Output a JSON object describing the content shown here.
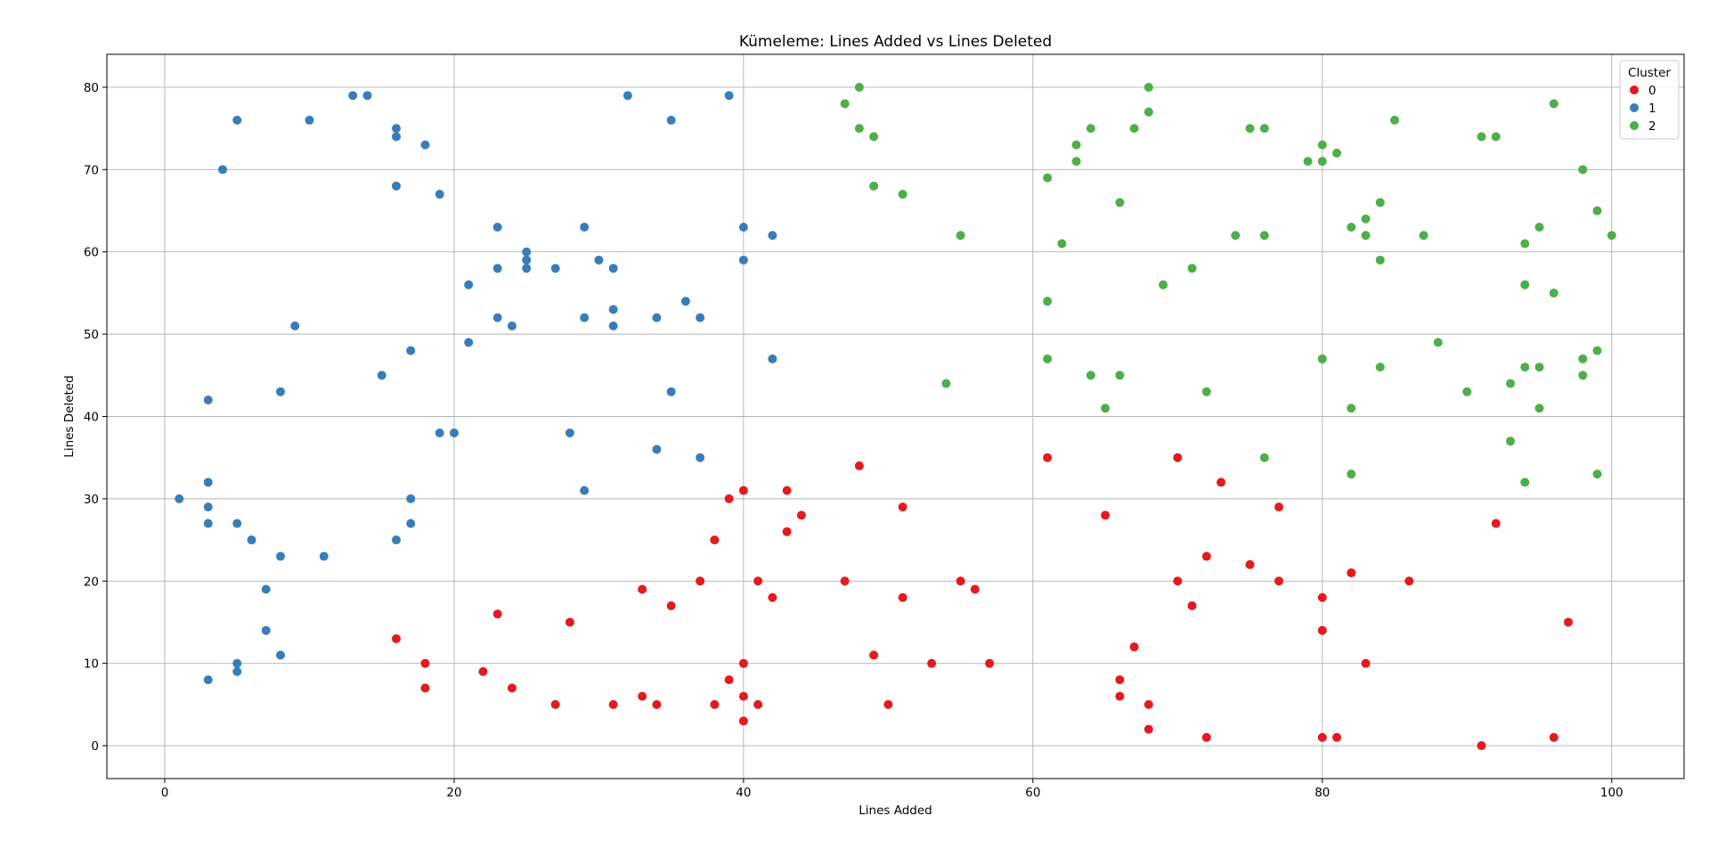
{
  "chart_data": {
    "type": "scatter",
    "title": "Kümeleme: Lines Added vs Lines Deleted",
    "xlabel": "Lines Added",
    "ylabel": "Lines Deleted",
    "xlim": [
      -4,
      105
    ],
    "ylim": [
      -4,
      84
    ],
    "xticks": [
      0,
      20,
      40,
      60,
      80,
      100
    ],
    "yticks": [
      0,
      10,
      20,
      30,
      40,
      50,
      60,
      70,
      80
    ],
    "grid": true,
    "legend": {
      "title": "Cluster",
      "placement": "top-right"
    },
    "series": [
      {
        "name": "0",
        "color": "#e41a1c",
        "points": [
          [
            16,
            13
          ],
          [
            18,
            10
          ],
          [
            18,
            7
          ],
          [
            22,
            9
          ],
          [
            23,
            16
          ],
          [
            24,
            7
          ],
          [
            27,
            5
          ],
          [
            28,
            15
          ],
          [
            31,
            5
          ],
          [
            33,
            19
          ],
          [
            33,
            6
          ],
          [
            34,
            5
          ],
          [
            35,
            17
          ],
          [
            37,
            20
          ],
          [
            38,
            25
          ],
          [
            38,
            5
          ],
          [
            39,
            30
          ],
          [
            39,
            8
          ],
          [
            40,
            31
          ],
          [
            40,
            10
          ],
          [
            40,
            6
          ],
          [
            40,
            3
          ],
          [
            41,
            20
          ],
          [
            41,
            5
          ],
          [
            42,
            18
          ],
          [
            43,
            31
          ],
          [
            43,
            26
          ],
          [
            44,
            28
          ],
          [
            47,
            20
          ],
          [
            48,
            34
          ],
          [
            49,
            11
          ],
          [
            50,
            5
          ],
          [
            51,
            29
          ],
          [
            51,
            18
          ],
          [
            53,
            10
          ],
          [
            55,
            20
          ],
          [
            56,
            19
          ],
          [
            57,
            10
          ],
          [
            61,
            35
          ],
          [
            65,
            28
          ],
          [
            66,
            8
          ],
          [
            66,
            6
          ],
          [
            67,
            12
          ],
          [
            68,
            5
          ],
          [
            68,
            2
          ],
          [
            70,
            35
          ],
          [
            70,
            20
          ],
          [
            71,
            17
          ],
          [
            72,
            23
          ],
          [
            72,
            1
          ],
          [
            73,
            32
          ],
          [
            75,
            22
          ],
          [
            77,
            29
          ],
          [
            77,
            20
          ],
          [
            80,
            18
          ],
          [
            80,
            14
          ],
          [
            80,
            1
          ],
          [
            81,
            1
          ],
          [
            82,
            21
          ],
          [
            83,
            10
          ],
          [
            86,
            20
          ],
          [
            91,
            0
          ],
          [
            92,
            27
          ],
          [
            96,
            1
          ],
          [
            97,
            15
          ]
        ]
      },
      {
        "name": "1",
        "color": "#377eb8",
        "points": [
          [
            1,
            30
          ],
          [
            3,
            42
          ],
          [
            3,
            32
          ],
          [
            3,
            29
          ],
          [
            3,
            27
          ],
          [
            3,
            8
          ],
          [
            4,
            70
          ],
          [
            5,
            76
          ],
          [
            5,
            27
          ],
          [
            5,
            10
          ],
          [
            5,
            9
          ],
          [
            6,
            25
          ],
          [
            7,
            19
          ],
          [
            7,
            14
          ],
          [
            8,
            43
          ],
          [
            8,
            23
          ],
          [
            8,
            11
          ],
          [
            9,
            51
          ],
          [
            10,
            76
          ],
          [
            11,
            23
          ],
          [
            13,
            79
          ],
          [
            14,
            79
          ],
          [
            15,
            45
          ],
          [
            16,
            75
          ],
          [
            16,
            74
          ],
          [
            16,
            68
          ],
          [
            16,
            25
          ],
          [
            17,
            48
          ],
          [
            17,
            30
          ],
          [
            17,
            27
          ],
          [
            18,
            73
          ],
          [
            19,
            67
          ],
          [
            19,
            38
          ],
          [
            20,
            38
          ],
          [
            21,
            56
          ],
          [
            21,
            49
          ],
          [
            23,
            63
          ],
          [
            23,
            58
          ],
          [
            23,
            52
          ],
          [
            24,
            51
          ],
          [
            25,
            60
          ],
          [
            25,
            59
          ],
          [
            25,
            58
          ],
          [
            27,
            58
          ],
          [
            28,
            38
          ],
          [
            29,
            63
          ],
          [
            29,
            52
          ],
          [
            29,
            31
          ],
          [
            30,
            59
          ],
          [
            31,
            58
          ],
          [
            31,
            53
          ],
          [
            31,
            51
          ],
          [
            32,
            79
          ],
          [
            34,
            52
          ],
          [
            34,
            36
          ],
          [
            35,
            76
          ],
          [
            35,
            43
          ],
          [
            36,
            54
          ],
          [
            37,
            52
          ],
          [
            37,
            35
          ],
          [
            39,
            79
          ],
          [
            40,
            63
          ],
          [
            40,
            59
          ],
          [
            42,
            62
          ],
          [
            42,
            47
          ]
        ]
      },
      {
        "name": "2",
        "color": "#4daf4a",
        "points": [
          [
            47,
            78
          ],
          [
            48,
            80
          ],
          [
            48,
            75
          ],
          [
            49,
            74
          ],
          [
            49,
            68
          ],
          [
            51,
            67
          ],
          [
            54,
            44
          ],
          [
            55,
            62
          ],
          [
            61,
            69
          ],
          [
            61,
            54
          ],
          [
            61,
            47
          ],
          [
            62,
            61
          ],
          [
            63,
            73
          ],
          [
            63,
            71
          ],
          [
            64,
            75
          ],
          [
            64,
            45
          ],
          [
            65,
            41
          ],
          [
            66,
            66
          ],
          [
            66,
            45
          ],
          [
            67,
            75
          ],
          [
            68,
            80
          ],
          [
            68,
            77
          ],
          [
            69,
            56
          ],
          [
            71,
            58
          ],
          [
            72,
            43
          ],
          [
            74,
            62
          ],
          [
            75,
            75
          ],
          [
            76,
            75
          ],
          [
            76,
            62
          ],
          [
            76,
            35
          ],
          [
            79,
            71
          ],
          [
            80,
            73
          ],
          [
            80,
            71
          ],
          [
            80,
            47
          ],
          [
            81,
            72
          ],
          [
            82,
            63
          ],
          [
            82,
            41
          ],
          [
            82,
            33
          ],
          [
            83,
            64
          ],
          [
            83,
            62
          ],
          [
            84,
            66
          ],
          [
            84,
            59
          ],
          [
            84,
            46
          ],
          [
            85,
            76
          ],
          [
            87,
            62
          ],
          [
            88,
            49
          ],
          [
            90,
            43
          ],
          [
            91,
            74
          ],
          [
            92,
            74
          ],
          [
            93,
            44
          ],
          [
            93,
            37
          ],
          [
            94,
            61
          ],
          [
            94,
            56
          ],
          [
            94,
            46
          ],
          [
            94,
            32
          ],
          [
            95,
            63
          ],
          [
            95,
            46
          ],
          [
            95,
            41
          ],
          [
            96,
            78
          ],
          [
            96,
            55
          ],
          [
            98,
            70
          ],
          [
            98,
            47
          ],
          [
            98,
            45
          ],
          [
            99,
            65
          ],
          [
            99,
            48
          ],
          [
            99,
            33
          ],
          [
            100,
            62
          ]
        ]
      }
    ]
  }
}
